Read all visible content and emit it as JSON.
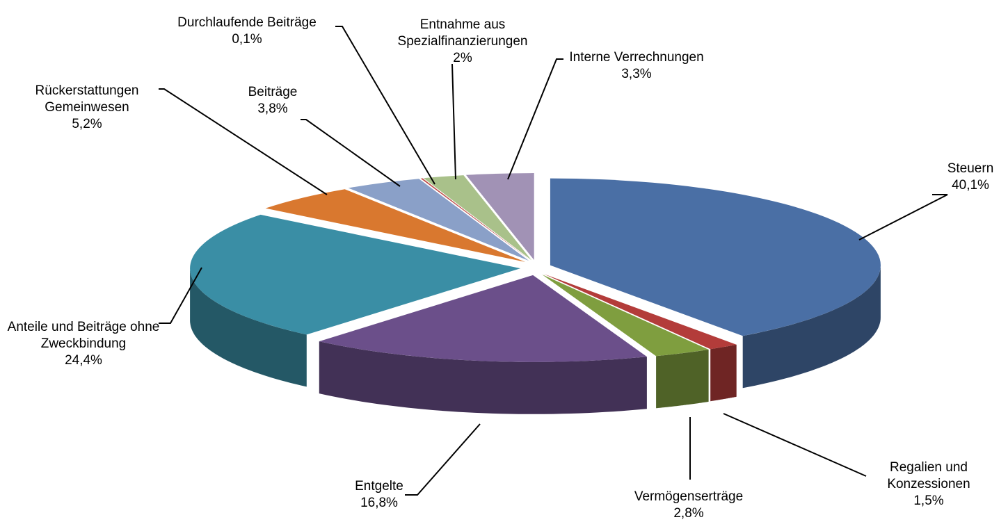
{
  "chart_data": {
    "type": "pie3d",
    "categories": [
      "Steuern",
      "Regalien und Konzessionen",
      "Vermögenserträge",
      "Entgelte",
      "Anteile und Beiträge ohne Zweckbindung",
      "Rückerstattungen Gemeinwesen",
      "Beiträge",
      "Durchlaufende Beiträge",
      "Entnahme aus Spezialfinanzierungen",
      "Interne Verrechnungen"
    ],
    "values": [
      40.1,
      1.5,
      2.8,
      16.8,
      24.4,
      5.2,
      3.8,
      0.1,
      2,
      3.3
    ],
    "value_labels": [
      "40,1%",
      "1,5%",
      "2,8%",
      "16,8%",
      "24,4%",
      "5,2%",
      "3,8%",
      "0,1%",
      "2%",
      "3,3%"
    ],
    "colors": [
      "#4a6fa5",
      "#b33c3a",
      "#7f9e3f",
      "#6b4f8a",
      "#3a8ea5",
      "#d9782f",
      "#8aa0c8",
      "#c0504d",
      "#a9c18a",
      "#a192b5"
    ]
  }
}
